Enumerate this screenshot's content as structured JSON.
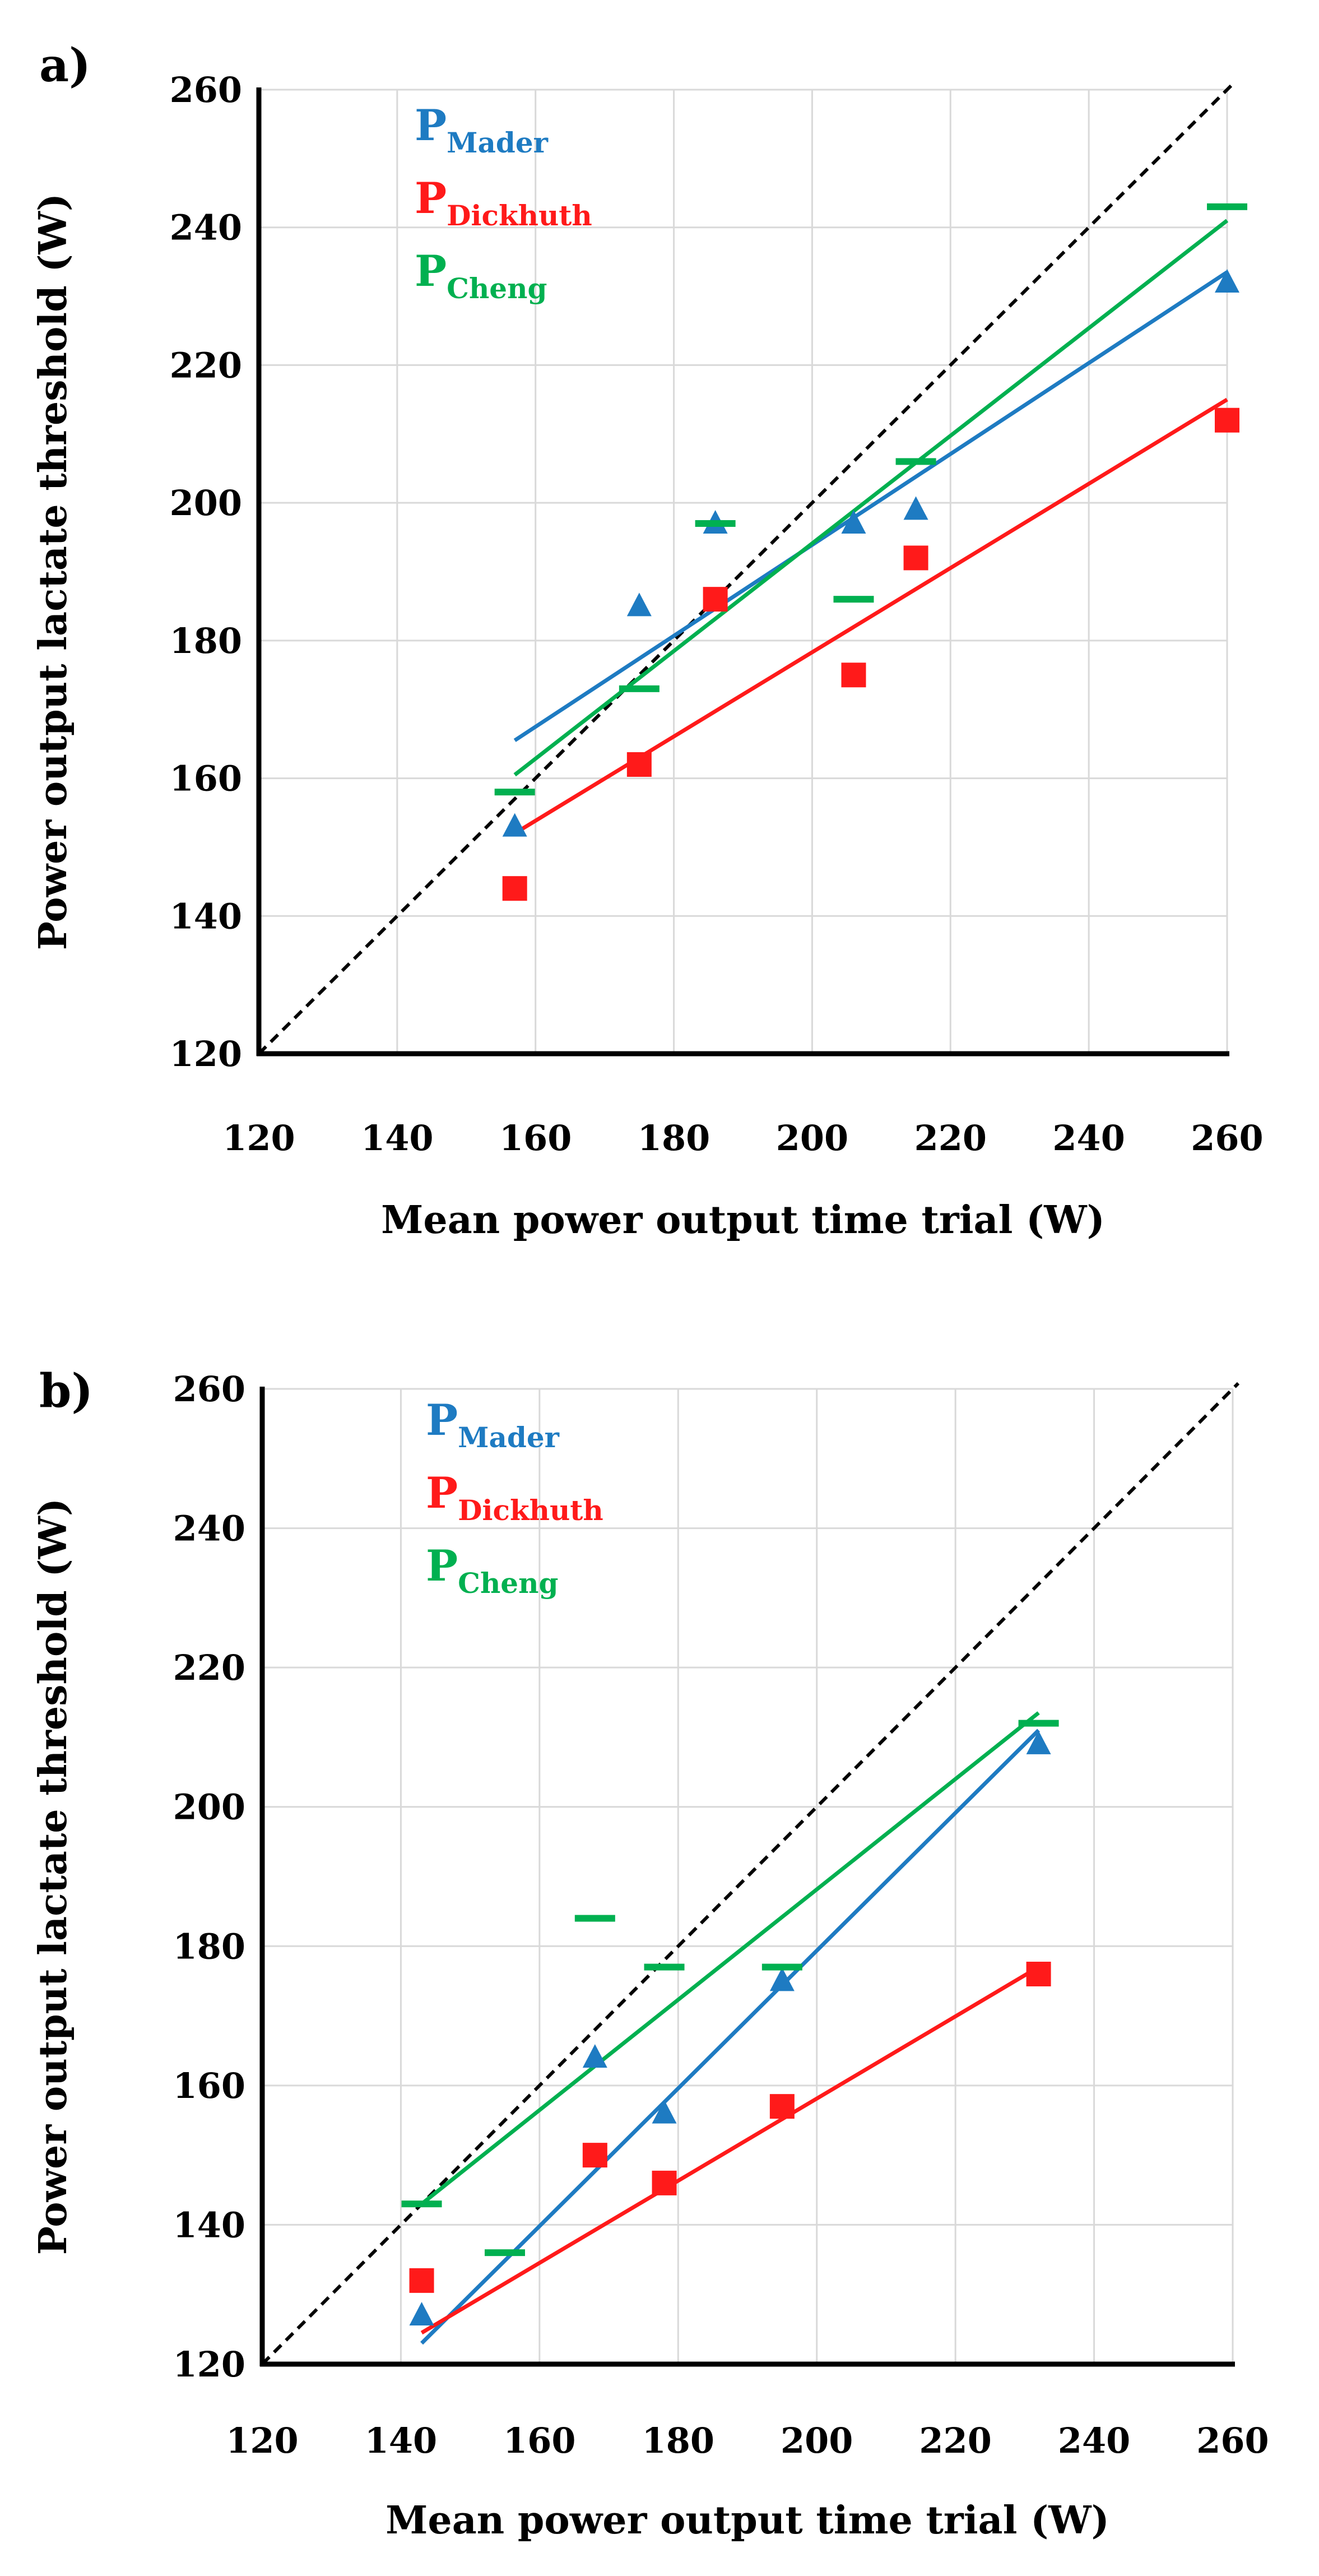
{
  "colors": {
    "mader": "#1e7bc2",
    "dickhuth": "#ff1a1a",
    "cheng": "#00b050"
  },
  "chart_data": [
    {
      "type": "scatter",
      "panel": "a)",
      "xlabel": "Mean power output time trial (W)",
      "ylabel": "Power output lactate threshold (W)",
      "xlim": [
        120,
        260
      ],
      "ylim": [
        120,
        260
      ],
      "xticks": [
        "120",
        "140",
        "160",
        "180",
        "200",
        "220",
        "240",
        "260"
      ],
      "yticks": [
        "120",
        "140",
        "160",
        "180",
        "200",
        "220",
        "240",
        "260"
      ],
      "grid": true,
      "identity_line": true,
      "legend": [
        {
          "main": "P",
          "sub": "Mader"
        },
        {
          "main": "P",
          "sub": "Dickhuth"
        },
        {
          "main": "P",
          "sub": "Cheng"
        }
      ],
      "series": [
        {
          "name": "Mader",
          "marker": "triangle",
          "color_key": "mader",
          "x": [
            157,
            175,
            186,
            206,
            215,
            260
          ],
          "y": [
            153,
            185,
            197,
            197,
            199,
            232
          ],
          "trend": [
            [
              157,
              165.5
            ],
            [
              260,
              233.5
            ]
          ]
        },
        {
          "name": "Dickhuth",
          "marker": "square",
          "color_key": "dickhuth",
          "x": [
            157,
            175,
            186,
            206,
            215,
            260
          ],
          "y": [
            144,
            162,
            186,
            175,
            192,
            212
          ],
          "trend": [
            [
              157,
              152
            ],
            [
              260,
              215
            ]
          ]
        },
        {
          "name": "Cheng",
          "marker": "dash",
          "color_key": "cheng",
          "x": [
            157,
            175,
            186,
            206,
            215,
            260
          ],
          "y": [
            158,
            173,
            197,
            186,
            206,
            243
          ],
          "trend": [
            [
              157,
              160.5
            ],
            [
              260,
              241
            ]
          ]
        }
      ]
    },
    {
      "type": "scatter",
      "panel": "b)",
      "xlabel": "Mean power output time trial (W)",
      "ylabel": "Power output lactate threshold (W)",
      "xlim": [
        120,
        260
      ],
      "ylim": [
        120,
        260
      ],
      "xticks": [
        "120",
        "140",
        "160",
        "180",
        "200",
        "220",
        "240",
        "260"
      ],
      "yticks": [
        "120",
        "140",
        "160",
        "180",
        "200",
        "220",
        "240",
        "260"
      ],
      "grid": true,
      "identity_line": true,
      "legend": [
        {
          "main": "P",
          "sub": "Mader"
        },
        {
          "main": "P",
          "sub": "Dickhuth"
        },
        {
          "main": "P",
          "sub": "Cheng"
        }
      ],
      "series": [
        {
          "name": "Mader",
          "marker": "triangle",
          "color_key": "mader",
          "x": [
            143,
            168,
            178,
            195,
            232
          ],
          "y": [
            127,
            164,
            156,
            175,
            209
          ],
          "trend": [
            [
              143,
              123
            ],
            [
              232,
              211
            ]
          ]
        },
        {
          "name": "Dickhuth",
          "marker": "square",
          "color_key": "dickhuth",
          "x": [
            143,
            168,
            178,
            195,
            232
          ],
          "y": [
            132,
            150,
            146,
            157,
            176
          ],
          "trend": [
            [
              143,
              124.5
            ],
            [
              232,
              177
            ]
          ]
        },
        {
          "name": "Cheng",
          "marker": "dash",
          "color_key": "cheng",
          "x": [
            143,
            155,
            168,
            178,
            195,
            232
          ],
          "y": [
            143,
            136,
            184,
            177,
            177,
            212
          ],
          "trend": [
            [
              143,
              143
            ],
            [
              232,
              213.5
            ]
          ]
        }
      ]
    }
  ]
}
